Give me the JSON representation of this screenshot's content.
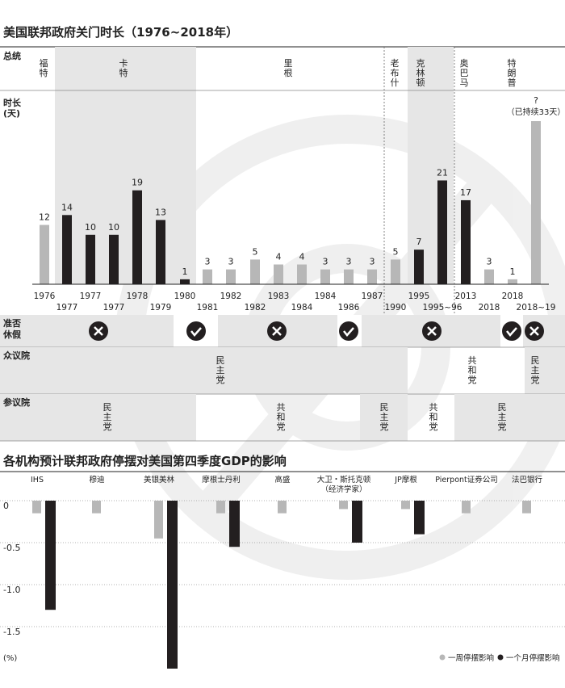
{
  "colors": {
    "gray_bar": "#b7b7b7",
    "black_bar": "#231f20",
    "band": "#e6e6e6",
    "check_circle": "#231f20"
  },
  "chart_data": [
    {
      "type": "bar",
      "title": "美国联邦政府关门时长（1976~2018年）",
      "row_labels": {
        "president": "总统",
        "duration": "时长\n(天)",
        "leave": "准否\n休假",
        "house": "众议院",
        "senate": "参议院"
      },
      "presidents": [
        {
          "name": "福特"
        },
        {
          "name": "卡特"
        },
        {
          "name": "里根"
        },
        {
          "name": "老布什"
        },
        {
          "name": "克林顿"
        },
        {
          "name": "奥巴马"
        },
        {
          "name": "特朗普"
        }
      ],
      "series": [
        {
          "legend": "no"
        },
        {
          "legend": "no"
        }
      ],
      "shutdowns": [
        {
          "year": "1976",
          "days": 12,
          "color": "gray"
        },
        {
          "year": "1977",
          "days": 14,
          "color": "black"
        },
        {
          "year": "1977",
          "days": 10,
          "color": "black"
        },
        {
          "year": "1977",
          "days": 10,
          "color": "black"
        },
        {
          "year": "1978",
          "days": 19,
          "color": "black"
        },
        {
          "year": "1979",
          "days": 13,
          "color": "black"
        },
        {
          "year": "1980",
          "days": 1,
          "color": "black"
        },
        {
          "year": "1981",
          "days": 3,
          "color": "gray"
        },
        {
          "year": "1982",
          "days": 3,
          "color": "gray"
        },
        {
          "year": "1982",
          "days": 5,
          "color": "gray"
        },
        {
          "year": "1983",
          "days": 4,
          "color": "gray"
        },
        {
          "year": "1984",
          "days": 4,
          "color": "gray"
        },
        {
          "year": "1984",
          "days": 3,
          "color": "gray"
        },
        {
          "year": "1986",
          "days": 3,
          "color": "gray"
        },
        {
          "year": "1987",
          "days": 3,
          "color": "gray"
        },
        {
          "year": "1990",
          "days": 5,
          "color": "gray"
        },
        {
          "year": "1995",
          "days": 7,
          "color": "black"
        },
        {
          "year": "1995~96",
          "days": 21,
          "color": "black"
        },
        {
          "year": "2013",
          "days": 17,
          "color": "black"
        },
        {
          "year": "2018",
          "days": 3,
          "color": "gray"
        },
        {
          "year": "2018",
          "days": 1,
          "color": "gray"
        },
        {
          "year": "2018~19",
          "days": 33,
          "color": "gray",
          "label": "?",
          "note": "（已持续33天）"
        }
      ],
      "leave_icons": [
        "cross",
        "check",
        "cross",
        "check",
        "cross",
        "check",
        "cross"
      ],
      "house": [
        "民主党",
        "共和党",
        "民主党"
      ],
      "senate": [
        "民主党",
        "共和党",
        "民主党",
        "共和党",
        "民主党"
      ],
      "ylim": [
        0,
        33
      ]
    },
    {
      "type": "bar",
      "title": "各机构预计联邦政府停摆对美国第四季度GDP的影响",
      "unit": "(%)",
      "categories": [
        "IHS",
        "穆迪",
        "美银美林",
        "摩根士丹利",
        "高盛",
        "大卫・斯托克顿\n（经济学家）",
        "JP摩根",
        "Pierpont证券公司",
        "法巴银行"
      ],
      "series": [
        {
          "name": "一周停摆影响",
          "values": [
            -0.15,
            -0.15,
            -0.45,
            -0.15,
            -0.15,
            -0.1,
            -0.1,
            -0.15,
            -0.15
          ]
        },
        {
          "name": "一个月停摆影响",
          "values": [
            -1.3,
            null,
            -2.0,
            -0.55,
            null,
            -0.5,
            -0.4,
            null,
            null
          ]
        }
      ],
      "yticks": [
        0,
        -0.5,
        -1.0,
        -1.5
      ],
      "ytick_labels": [
        "0",
        "-0.5",
        "-1.0",
        "-1.5"
      ],
      "ylim": [
        -2.0,
        0.1
      ]
    }
  ]
}
